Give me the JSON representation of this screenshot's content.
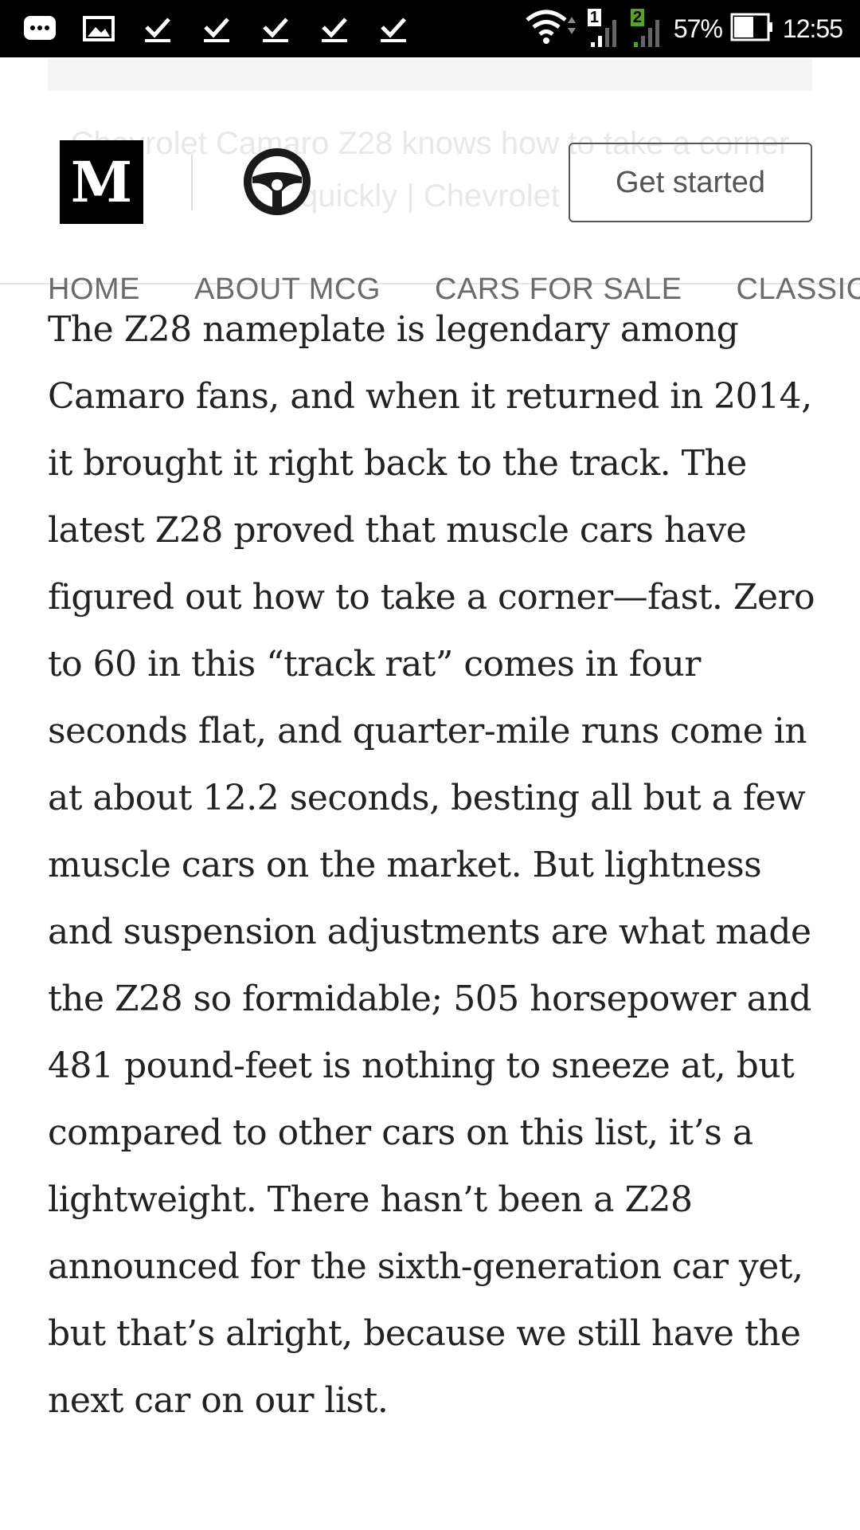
{
  "status_bar": {
    "battery_percent": "57%",
    "time": "12:55",
    "sim1_label": "1",
    "sim2_label": "2",
    "icons": [
      "messenger-icon",
      "gallery-icon",
      "download-done-icon",
      "download-done-icon",
      "download-done-icon",
      "download-done-icon",
      "download-done-icon",
      "wifi-icon",
      "signal-icon",
      "signal-icon",
      "battery-icon"
    ]
  },
  "header": {
    "logo_letter": "M",
    "publication_icon": "steering-wheel-icon",
    "cta_label": "Get started",
    "ghost_title": "Chevrolet Camaro Z28 knows how to take a corner quickly | Chevrolet"
  },
  "nav": {
    "items": [
      "HOME",
      "ABOUT MCG",
      "CARS FOR SALE",
      "CLASSIC"
    ]
  },
  "article": {
    "paragraph": "The Z28 nameplate is legendary among Camaro fans, and when it returned in 2014, it brought it right back to the track. The latest Z28 proved that muscle cars have figured out how to take a corner—fast. Zero to 60 in this “track rat” comes in four seconds flat, and quarter-mile runs come in at about 12.2 seconds, besting all but a few muscle cars on the market. But lightness and suspension adjustments are what made the Z28 so formidable; 505 horsepower and 481 pound-feet is nothing to sneeze at, but compared to other cars on this list, it’s a lightweight. There hasn’t been a Z28 announced for the sixth-generation car yet, but that’s alright, because we still have the next car on our list."
  },
  "colors": {
    "status_bar_bg": "#000000",
    "text": "#222222",
    "nav_text": "#6b6b6b",
    "logo_bg": "#000000"
  }
}
